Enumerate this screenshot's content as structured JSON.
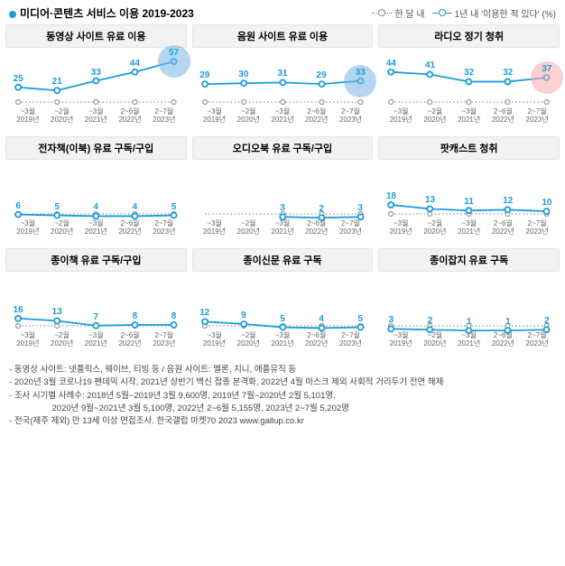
{
  "header": {
    "title": "미디어·콘텐츠 서비스 이용 2019-2023",
    "legend_month": "한 달 내",
    "legend_year": "1년 내 '이용한 적 있다' (%)"
  },
  "theme": {
    "series_color": "#1b9ddb",
    "dotted_color": "#999999",
    "halo_blue": "rgba(120,180,230,0.55)",
    "halo_red": "rgba(245,170,170,0.55)",
    "panel_title_bg": "#f2f2f2",
    "label_color": "#1b9ddb",
    "label_fontsize": 10
  },
  "x_labels": [
    {
      "top": "~3월",
      "bottom": "2019년"
    },
    {
      "top": "~2월",
      "bottom": "2020년"
    },
    {
      "top": "~3월",
      "bottom": "2021년"
    },
    {
      "top": "2~6월",
      "bottom": "2022년"
    },
    {
      "top": "2~7월",
      "bottom": "2023년"
    }
  ],
  "global_ylim": [
    0,
    65
  ],
  "charts": [
    {
      "title": "동영상 사이트 유료 이용",
      "values": [
        25,
        21,
        33,
        44,
        57
      ],
      "last_halo": "blue"
    },
    {
      "title": "음원 사이트 유료 이용",
      "values": [
        29,
        30,
        31,
        29,
        33
      ],
      "last_halo": "blue"
    },
    {
      "title": "라디오 정기 청취",
      "values": [
        44,
        41,
        32,
        32,
        37
      ],
      "last_halo": "red"
    },
    {
      "title": "전자책(이북) 유료 구독/구입",
      "values": [
        6,
        5,
        4,
        4,
        5
      ],
      "last_halo": null
    },
    {
      "title": "오디오북 유료 구독/구입",
      "values": [
        null,
        null,
        3,
        2,
        3
      ],
      "last_halo": null
    },
    {
      "title": "팟캐스트 청취",
      "values": [
        18,
        13,
        11,
        12,
        10
      ],
      "last_halo": null
    },
    {
      "title": "종이책 유료 구독/구입",
      "values": [
        16,
        13,
        7,
        8,
        8
      ],
      "last_halo": null
    },
    {
      "title": "종이신문 유료 구독",
      "values": [
        12,
        9,
        5,
        4,
        5
      ],
      "last_halo": null
    },
    {
      "title": "종이잡지 유료 구독",
      "values": [
        3,
        2,
        1,
        1,
        2
      ],
      "last_halo": null
    }
  ],
  "footnotes": [
    "동영상 사이트: 넷플릭스, 웨이브, 티빙 등 / 음원 사이트: 멜론, 지니, 애플뮤직 등",
    "2020년 3월 코로나19 팬데믹 시작, 2021년 상반기 백신 접종 본격화, 2022년 4월 마스크 제외 사회적 거리두기 전면 해제",
    "조사 시기별 사례수: 2018년 5월~2019년 3월 9,600명, 2019년 7월~2020년 2월 5,101명,",
    "　　　　　2020년 9월~2021년 3월 5,100명, 2022년 2~6월 5,155명, 2023년 2~7월 5,202명",
    "전국(제주 제외) 만 13세 이상 면접조사. 한국갤럽 마켓70 2023 www.gallup.co.kr"
  ]
}
